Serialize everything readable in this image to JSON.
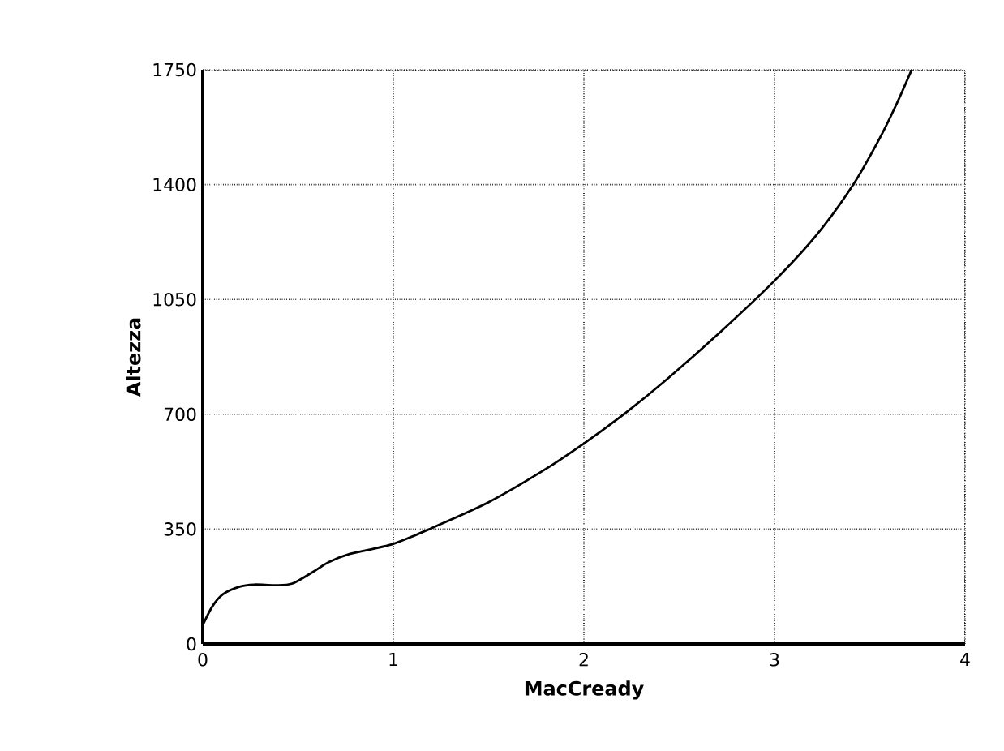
{
  "chart_data": {
    "type": "line",
    "xlabel": "MacCready",
    "ylabel": "Altezza",
    "x": [
      0,
      0.05,
      0.105,
      0.19,
      0.27,
      0.38,
      0.47,
      0.58,
      0.66,
      0.77,
      1,
      1.22,
      1.5,
      1.78,
      2,
      2.22,
      2.44,
      2.72,
      3,
      3.22,
      3.41,
      3.55,
      3.64,
      3.72
    ],
    "series": [
      {
        "color": "#000000",
        "values": [
          57,
          114,
          151,
          174,
          181,
          179,
          184,
          220,
          249,
          274,
          305,
          358,
          432,
          526,
          611,
          705,
          809,
          953,
          1107,
          1246,
          1397,
          1539,
          1645,
          1750
        ]
      }
    ],
    "xlim": [
      0,
      4
    ],
    "ylim": [
      0,
      1750
    ],
    "xticks": [
      0,
      1,
      2,
      3,
      4
    ],
    "yticks": [
      0,
      350,
      700,
      1050,
      1400,
      1750
    ],
    "grid": true,
    "line_style": "solid"
  }
}
